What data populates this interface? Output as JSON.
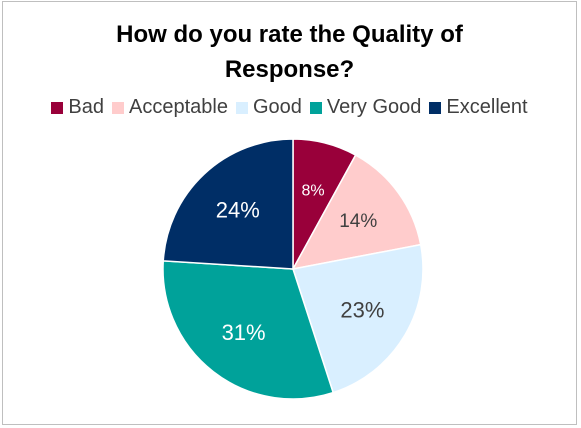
{
  "chart_data": {
    "type": "pie",
    "title_lines": [
      "How do you rate the Quality of",
      "Response?"
    ],
    "categories": [
      "Bad",
      "Acceptable",
      "Good",
      "Very Good",
      "Excellent"
    ],
    "values": [
      8,
      14,
      23,
      31,
      24
    ],
    "data_labels": [
      "8%",
      "14%",
      "23%",
      "31%",
      "24%"
    ],
    "colors": [
      "#99003a",
      "#ffcccc",
      "#d9efff",
      "#00a29a",
      "#002e66"
    ],
    "label_colors": [
      "#ffffff",
      "#404040",
      "#404040",
      "#ffffff",
      "#ffffff"
    ],
    "legend_position": "top",
    "start_angle_deg": 0,
    "direction": "clockwise"
  }
}
